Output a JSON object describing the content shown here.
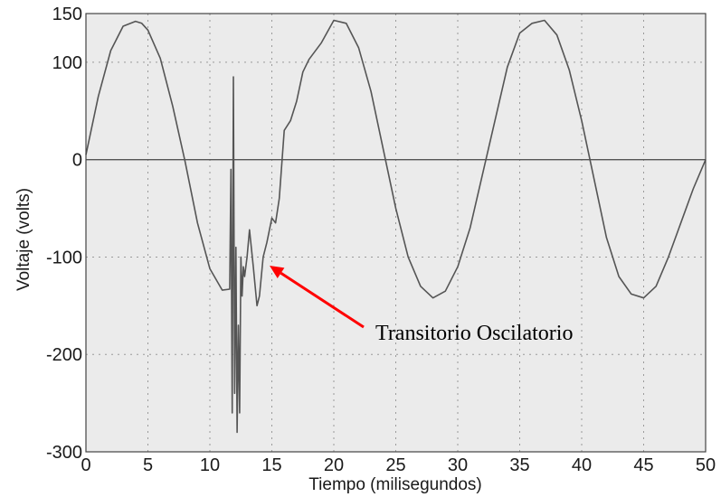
{
  "chart_data": {
    "type": "line",
    "title": "",
    "xlabel": "Tiempo (milisegundos)",
    "ylabel": "Voltaje (volts)",
    "xlim": [
      0,
      50
    ],
    "ylim": [
      -300,
      150
    ],
    "xticks": [
      0,
      5,
      10,
      15,
      20,
      25,
      30,
      35,
      40,
      45,
      50
    ],
    "yticks": [
      150,
      100,
      0,
      -100,
      -200,
      -300
    ],
    "grid": true,
    "zero_line": true,
    "colors": {
      "background": "#ebebeb",
      "line": "#555555",
      "arrow": "#ff0000",
      "grid": "#9a9a9a"
    },
    "annotation": {
      "text": "Transitorio Oscilatorio",
      "arrow_to": [
        14.6,
        -107
      ]
    },
    "series": [
      {
        "x": [
          0,
          1,
          2,
          3,
          4,
          4.5,
          5,
          6,
          7,
          8,
          9,
          10,
          11,
          11.6,
          11.7,
          11.8,
          11.9,
          12.0,
          12.1,
          12.2,
          12.3,
          12.4,
          12.5,
          12.6,
          12.7,
          12.8,
          13.0,
          13.2,
          13.5,
          13.8,
          14.0,
          14.3,
          14.6,
          15.0,
          15.3,
          15.6,
          16.0,
          16.5,
          17.0,
          17.5,
          18.0,
          19.0,
          20.0,
          21.0,
          22.0,
          23.0,
          24.0,
          25.0,
          26.0,
          27.0,
          28.0,
          29.0,
          30.0,
          31.0,
          32.0,
          33.0,
          34.0,
          35.0,
          36.0,
          37.0,
          38.0,
          39.0,
          40.0,
          41.0,
          42.0,
          43.0,
          44.0,
          45.0,
          46.0,
          47.0,
          48.0,
          49.0,
          50.0
        ],
        "y": [
          5,
          65,
          112,
          137,
          142,
          140,
          133,
          104,
          55,
          -2,
          -65,
          -112,
          -134,
          -133,
          -10,
          -260,
          85,
          -240,
          -90,
          -280,
          -170,
          -260,
          -100,
          -140,
          -110,
          -120,
          -100,
          -72,
          -110,
          -150,
          -140,
          -100,
          -85,
          -60,
          -65,
          -40,
          30,
          40,
          60,
          90,
          103,
          120,
          143,
          140,
          115,
          70,
          10,
          -50,
          -100,
          -130,
          -142,
          -135,
          -110,
          -70,
          -15,
          40,
          95,
          130,
          140,
          143,
          128,
          92,
          40,
          -20,
          -80,
          -120,
          -138,
          -142,
          -130,
          -100,
          -65,
          -30,
          0
        ]
      }
    ]
  }
}
